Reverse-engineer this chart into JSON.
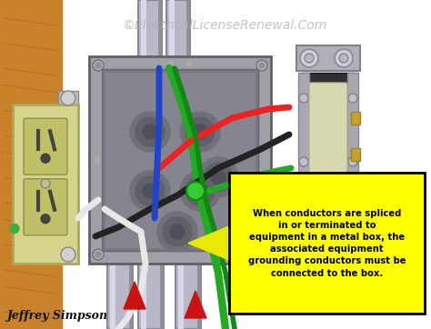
{
  "title": "©ElectricalLicenseRenewal.Com",
  "title_color": "#b0b0b0",
  "title_fontsize": 10,
  "author": "Jeffrey Simpson",
  "author_fontsize": 9,
  "author_color": "#111111",
  "bg_color": "#ffffff",
  "callout_text": "When conductors are spliced\nin or terminated to\nequipment in a metal box, the\nassociated equipment\ngrounding conductors must be\nconnected to the box.",
  "callout_bg": "#ffff00",
  "callout_border": "#000000",
  "callout_fontsize": 7.2,
  "wood_color": "#c8832a",
  "wood_dark": "#a0621a",
  "conduit_color": "#b8b8c8",
  "conduit_dark": "#888898",
  "box_outer": "#a0a0a8",
  "box_inner": "#808088",
  "box_face": "#909098",
  "outlet_body": "#d4d48a",
  "outlet_socket": "#c8c87a",
  "switch_body": "#909090",
  "switch_paddle": "#d8d8b0",
  "wire_red": "#ee2222",
  "wire_green": "#22aa22",
  "wire_green2": "#118811",
  "wire_black": "#222222",
  "wire_white": "#e8e8e8",
  "wire_blue": "#2244cc",
  "arrow_color": "#cc1111",
  "callout_arrow_color": "#e8e800"
}
